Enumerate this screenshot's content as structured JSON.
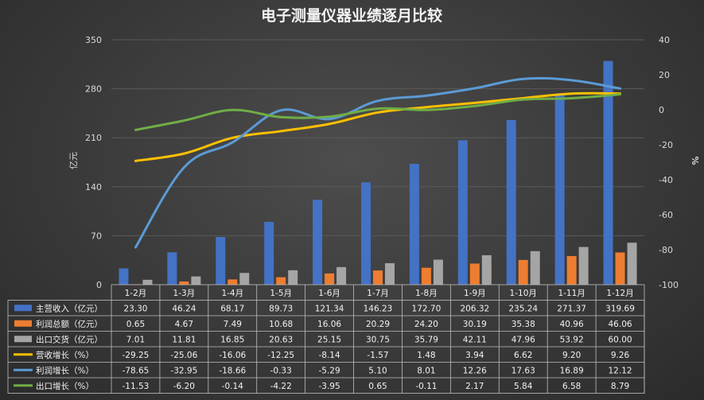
{
  "chart_data": {
    "type": "bar",
    "title": "电子测量仪器业绩逐月比较",
    "ylabel": "亿元",
    "y2label": "%",
    "ylim": [
      0,
      350
    ],
    "yticks": [
      0,
      70,
      140,
      210,
      280,
      350
    ],
    "y2lim": [
      -100,
      40
    ],
    "y2ticks": [
      -100,
      -80,
      -60,
      -40,
      -20,
      0,
      20,
      40
    ],
    "grid": true,
    "categories": [
      "1-2月",
      "1-3月",
      "1-4月",
      "1-5月",
      "1-6月",
      "1-7月",
      "1-8月",
      "1-9月",
      "1-10月",
      "1-11月",
      "1-12月"
    ],
    "series": [
      {
        "name": "主营收入（亿元）",
        "type": "bar",
        "axis": "left",
        "color": "#4472C4",
        "values": [
          23.3,
          46.24,
          68.17,
          89.73,
          121.34,
          146.23,
          172.7,
          206.32,
          235.24,
          271.37,
          319.69
        ],
        "labels": [
          "23.30",
          "46.24",
          "68.17",
          "89.73",
          "121.34",
          "146.23",
          "172.70",
          "206.32",
          "235.24",
          "271.37",
          "319.69"
        ]
      },
      {
        "name": "利润总额（亿元）",
        "type": "bar",
        "axis": "left",
        "color": "#ED7D31",
        "values": [
          0.65,
          4.67,
          7.49,
          10.68,
          16.06,
          20.29,
          24.2,
          30.19,
          35.38,
          40.96,
          46.06
        ],
        "labels": [
          "0.65",
          "4.67",
          "7.49",
          "10.68",
          "16.06",
          "20.29",
          "24.20",
          "30.19",
          "35.38",
          "40.96",
          "46.06"
        ]
      },
      {
        "name": "出口交货（亿元）",
        "type": "bar",
        "axis": "left",
        "color": "#A5A5A5",
        "values": [
          7.01,
          11.81,
          16.85,
          20.63,
          25.15,
          30.75,
          35.79,
          42.11,
          47.96,
          53.92,
          60.0
        ],
        "labels": [
          "7.01",
          "11.81",
          "16.85",
          "20.63",
          "25.15",
          "30.75",
          "35.79",
          "42.11",
          "47.96",
          "53.92",
          "60.00"
        ]
      },
      {
        "name": "营收增长（%）",
        "type": "line",
        "axis": "right",
        "color": "#FFC000",
        "values": [
          -29.25,
          -25.06,
          -16.06,
          -12.25,
          -8.14,
          -1.57,
          1.48,
          3.94,
          6.62,
          9.2,
          9.26
        ],
        "labels": [
          "-29.25",
          "-25.06",
          "-16.06",
          "-12.25",
          "-8.14",
          "-1.57",
          "1.48",
          "3.94",
          "6.62",
          "9.20",
          "9.26"
        ]
      },
      {
        "name": "利润增长（%）",
        "type": "line",
        "axis": "right",
        "color": "#5B9BD5",
        "values": [
          -78.65,
          -32.95,
          -18.66,
          -0.33,
          -5.29,
          5.1,
          8.01,
          12.26,
          17.63,
          16.89,
          12.12
        ],
        "labels": [
          "-78.65",
          "-32.95",
          "-18.66",
          "-0.33",
          "-5.29",
          "5.10",
          "8.01",
          "12.26",
          "17.63",
          "16.89",
          "12.12"
        ]
      },
      {
        "name": "出口增长（%）",
        "type": "line",
        "axis": "right",
        "color": "#70AD47",
        "values": [
          -11.53,
          -6.2,
          -0.14,
          -4.22,
          -3.95,
          0.65,
          -0.11,
          2.17,
          5.84,
          6.58,
          8.79
        ],
        "labels": [
          "-11.53",
          "-6.20",
          "-0.14",
          "-4.22",
          "-3.95",
          "0.65",
          "-0.11",
          "2.17",
          "5.84",
          "6.58",
          "8.79"
        ]
      }
    ]
  }
}
